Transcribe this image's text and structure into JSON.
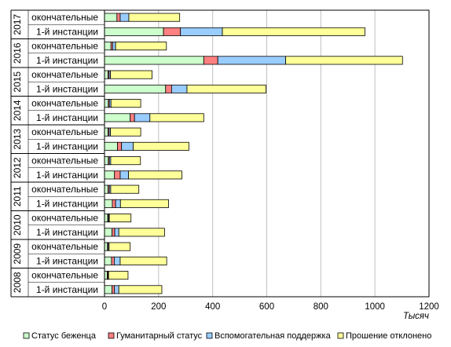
{
  "chart_data": {
    "type": "bar",
    "orientation": "horizontal",
    "stacked": true,
    "unit_label": "Тысяч",
    "xlim": [
      0,
      1200
    ],
    "x_ticks": [
      "0",
      "200",
      "400",
      "600",
      "800",
      "1000",
      "1200"
    ],
    "grid": true,
    "legend_position": "bottom",
    "groups": [
      {
        "year": "2017",
        "rows": [
          {
            "label": "окончательные",
            "values": [
              46,
              12,
              32,
              188
            ]
          },
          {
            "label": "1-й инстанции",
            "values": [
              218,
              63,
              155,
              527
            ]
          }
        ]
      },
      {
        "year": "2016",
        "rows": [
          {
            "label": "окончательные",
            "values": [
              24,
              6,
              11,
              188
            ]
          },
          {
            "label": "1-й инстанции",
            "values": [
              367,
              52,
              251,
              432
            ]
          }
        ]
      },
      {
        "year": "2015",
        "rows": [
          {
            "label": "окончательные",
            "values": [
              13,
              4,
              5,
              154
            ]
          },
          {
            "label": "1-й инстанции",
            "values": [
              226,
              22,
              57,
              292
            ]
          }
        ]
      },
      {
        "year": "2014",
        "rows": [
          {
            "label": "окончательные",
            "values": [
              14,
              4,
              6,
              110
            ]
          },
          {
            "label": "1-й инстанции",
            "values": [
              95,
              16,
              57,
              199
            ]
          }
        ]
      },
      {
        "year": "2013",
        "rows": [
          {
            "label": "окончательные",
            "values": [
              13,
              4,
              5,
              112
            ]
          },
          {
            "label": "1-й инстанции",
            "values": [
              48,
              15,
              43,
              206
            ]
          }
        ]
      },
      {
        "year": "2012",
        "rows": [
          {
            "label": "окончательные",
            "values": [
              14,
              4,
              5,
              110
            ]
          },
          {
            "label": "1-й инстанции",
            "values": [
              37,
              21,
              31,
              197
            ]
          }
        ]
      },
      {
        "year": "2011",
        "rows": [
          {
            "label": "окончательные",
            "values": [
              13,
              5,
              5,
              104
            ]
          },
          {
            "label": "1-й инстанции",
            "values": [
              29,
              12,
              18,
              178
            ]
          }
        ]
      },
      {
        "year": "2010",
        "rows": [
          {
            "label": "окончательные",
            "values": [
              12,
              3,
              3,
              80
            ]
          },
          {
            "label": "1-й инстанции",
            "values": [
              28,
              10,
              15,
              169
            ]
          }
        ]
      },
      {
        "year": "2009",
        "rows": [
          {
            "label": "окончательные",
            "values": [
              11,
              3,
              3,
              78
            ]
          },
          {
            "label": "1-й инстанции",
            "values": [
              26,
              10,
              22,
              172
            ]
          }
        ]
      },
      {
        "year": "2008",
        "rows": [
          {
            "label": "окончательные",
            "values": [
              10,
              3,
              2,
              72
            ]
          },
          {
            "label": "1-й инстанции",
            "values": [
              28,
              9,
              16,
              159
            ]
          }
        ]
      }
    ],
    "series": [
      {
        "name": "Статус беженца",
        "color": "#ccffcc"
      },
      {
        "name": "Гуманитарный статус",
        "color": "#ff8080"
      },
      {
        "name": "Вспомогательная  поддержка",
        "color": "#99ccff"
      },
      {
        "name": "Прошение  отклонено",
        "color": "#ffff99"
      }
    ]
  }
}
